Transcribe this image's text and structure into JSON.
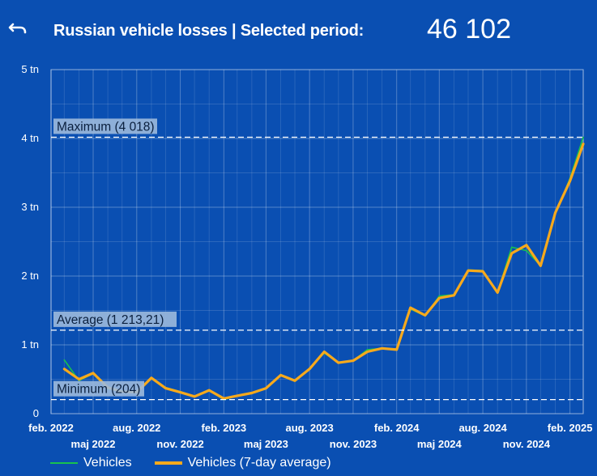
{
  "header": {
    "back_icon": "undo-arrow-icon",
    "title": "Russian vehicle losses | Selected period:",
    "total": "46 102"
  },
  "colors": {
    "background": "#0a4fb2",
    "vehicles": "#18c24e",
    "vehicles_avg": "#f7a91c",
    "reference_line": "#ffffff",
    "label_box": "#9cb9dc"
  },
  "chart_data": {
    "type": "line",
    "title": "",
    "xlabel": "",
    "ylabel": "",
    "ylim": [
      0,
      5000
    ],
    "yticks": [
      {
        "value": 0,
        "label": "0"
      },
      {
        "value": 1000,
        "label": "1 tn"
      },
      {
        "value": 2000,
        "label": "2 tn"
      },
      {
        "value": 3000,
        "label": "3 tn"
      },
      {
        "value": 4000,
        "label": "4 tn"
      },
      {
        "value": 5000,
        "label": "5 tn"
      }
    ],
    "xlim": [
      "2022-02-01",
      "2025-03-01"
    ],
    "xticks_top": [
      {
        "date": "2022-02-01",
        "label": "feb. 2022"
      },
      {
        "date": "2022-08-01",
        "label": "aug. 2022"
      },
      {
        "date": "2023-02-01",
        "label": "feb. 2023"
      },
      {
        "date": "2023-08-01",
        "label": "aug. 2023"
      },
      {
        "date": "2024-02-01",
        "label": "feb. 2024"
      },
      {
        "date": "2024-08-01",
        "label": "aug. 2024"
      },
      {
        "date": "2025-02-01",
        "label": "feb. 2025"
      }
    ],
    "xticks_bottom": [
      {
        "date": "2022-05-01",
        "label": "maj 2022"
      },
      {
        "date": "2022-11-01",
        "label": "nov. 2022"
      },
      {
        "date": "2023-05-01",
        "label": "maj 2023"
      },
      {
        "date": "2023-11-01",
        "label": "nov. 2023"
      },
      {
        "date": "2024-05-01",
        "label": "maj 2024"
      },
      {
        "date": "2024-11-01",
        "label": "nov. 2024"
      }
    ],
    "grid": true,
    "legend_position": "bottom-left",
    "reference_lines": [
      {
        "name": "maximum",
        "value": 4018,
        "label": "Maximum (4 018)"
      },
      {
        "name": "average",
        "value": 1213.21,
        "label": "Average (1 213,21)"
      },
      {
        "name": "minimum",
        "value": 204,
        "label": "Minimum (204)"
      }
    ],
    "series": [
      {
        "name": "Vehicles",
        "x": [
          "2022-03-01",
          "2022-04-01",
          "2022-05-01",
          "2022-06-01",
          "2022-07-01",
          "2022-08-01",
          "2022-09-01",
          "2022-10-01",
          "2022-11-01",
          "2022-12-01",
          "2023-01-01",
          "2023-02-01",
          "2023-03-01",
          "2023-04-01",
          "2023-05-01",
          "2023-06-01",
          "2023-07-01",
          "2023-08-01",
          "2023-09-01",
          "2023-10-01",
          "2023-11-01",
          "2023-12-01",
          "2024-01-01",
          "2024-02-01",
          "2024-03-01",
          "2024-04-01",
          "2024-05-01",
          "2024-06-01",
          "2024-07-01",
          "2024-08-01",
          "2024-09-01",
          "2024-10-01",
          "2024-11-01",
          "2024-12-01",
          "2025-01-01",
          "2025-02-01",
          "2025-03-01"
        ],
        "values": [
          780,
          480,
          580,
          360,
          330,
          300,
          520,
          380,
          320,
          250,
          340,
          204,
          260,
          300,
          360,
          570,
          470,
          660,
          880,
          740,
          770,
          930,
          950,
          930,
          1520,
          1420,
          1710,
          1730,
          2090,
          2080,
          1760,
          2420,
          2370,
          2150,
          2900,
          3420,
          4018
        ]
      },
      {
        "name": "Vehicles (7-day average)",
        "x": [
          "2022-03-01",
          "2022-04-01",
          "2022-05-01",
          "2022-06-01",
          "2022-07-01",
          "2022-08-01",
          "2022-09-01",
          "2022-10-01",
          "2022-11-01",
          "2022-12-01",
          "2023-01-01",
          "2023-02-01",
          "2023-03-01",
          "2023-04-01",
          "2023-05-01",
          "2023-06-01",
          "2023-07-01",
          "2023-08-01",
          "2023-09-01",
          "2023-10-01",
          "2023-11-01",
          "2023-12-01",
          "2024-01-01",
          "2024-02-01",
          "2024-03-01",
          "2024-04-01",
          "2024-05-01",
          "2024-06-01",
          "2024-07-01",
          "2024-08-01",
          "2024-09-01",
          "2024-10-01",
          "2024-11-01",
          "2024-12-01",
          "2025-01-01",
          "2025-02-01",
          "2025-03-01"
        ],
        "values": [
          650,
          500,
          590,
          380,
          320,
          310,
          520,
          370,
          310,
          250,
          340,
          220,
          260,
          300,
          370,
          560,
          480,
          650,
          900,
          740,
          770,
          900,
          950,
          930,
          1540,
          1430,
          1680,
          1720,
          2080,
          2070,
          1760,
          2330,
          2450,
          2150,
          2920,
          3380,
          3920
        ]
      }
    ]
  }
}
